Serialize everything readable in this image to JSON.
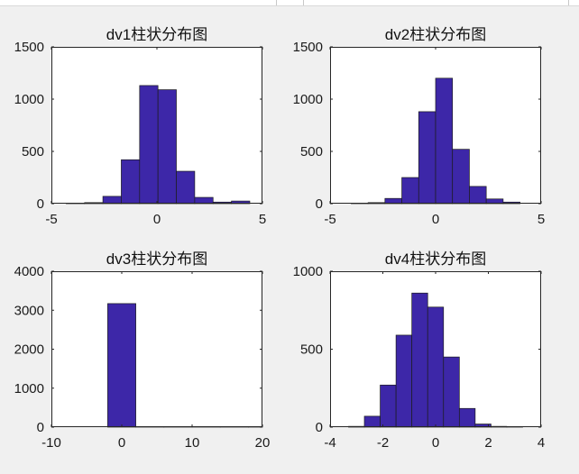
{
  "chart_data": [
    {
      "type": "bar",
      "title": "dv1柱状分布图",
      "xlim": [
        -5,
        5
      ],
      "ylim": [
        0,
        1500
      ],
      "xticks": [
        "-5",
        "0",
        "5"
      ],
      "yticks": [
        "0",
        "500",
        "1000",
        "1500"
      ],
      "bin_edges": [
        -4.3,
        -3.43,
        -2.56,
        -1.69,
        -0.82,
        0.05,
        0.92,
        1.79,
        2.66,
        3.53,
        4.4
      ],
      "values": [
        5,
        10,
        70,
        420,
        1130,
        1090,
        310,
        60,
        15,
        25
      ]
    },
    {
      "type": "bar",
      "title": "dv2柱状分布图",
      "xlim": [
        -5,
        5
      ],
      "ylim": [
        0,
        1500
      ],
      "xticks": [
        "-5",
        "0",
        "5"
      ],
      "yticks": [
        "0",
        "500",
        "1000",
        "1500"
      ],
      "bin_edges": [
        -4.0,
        -3.2,
        -2.4,
        -1.6,
        -0.8,
        0.0,
        0.8,
        1.6,
        2.4,
        3.2,
        4.0
      ],
      "values": [
        3,
        10,
        50,
        250,
        880,
        1200,
        520,
        165,
        45,
        15
      ]
    },
    {
      "type": "bar",
      "title": "dv3柱状分布图",
      "xlim": [
        -10,
        20
      ],
      "ylim": [
        0,
        4000
      ],
      "xticks": [
        "-10",
        "0",
        "10",
        "20"
      ],
      "yticks": [
        "0",
        "1000",
        "2000",
        "3000",
        "4000"
      ],
      "bin_edges": [
        -2.0,
        2.0,
        6.0,
        10.0,
        14.0,
        18.0,
        22.0
      ],
      "values": [
        3170,
        8,
        5,
        3,
        2,
        1
      ]
    },
    {
      "type": "bar",
      "title": "dv4柱状分布图",
      "xlim": [
        -4,
        4
      ],
      "ylim": [
        0,
        1000
      ],
      "xticks": [
        "-4",
        "-2",
        "0",
        "2",
        "4"
      ],
      "yticks": [
        "0",
        "500",
        "1000"
      ],
      "bin_edges": [
        -3.3,
        -2.7,
        -2.1,
        -1.5,
        -0.9,
        -0.3,
        0.3,
        0.9,
        1.5,
        2.1,
        2.7,
        3.3
      ],
      "values": [
        5,
        70,
        270,
        590,
        860,
        770,
        450,
        120,
        20,
        5,
        2
      ]
    }
  ],
  "colors": {
    "bar_fill": "#3d27a8",
    "bar_edge": "#1c1c1c",
    "axes_bg": "#ffffff",
    "axes_line": "#262626",
    "figure_bg": "#f0f0f0"
  }
}
